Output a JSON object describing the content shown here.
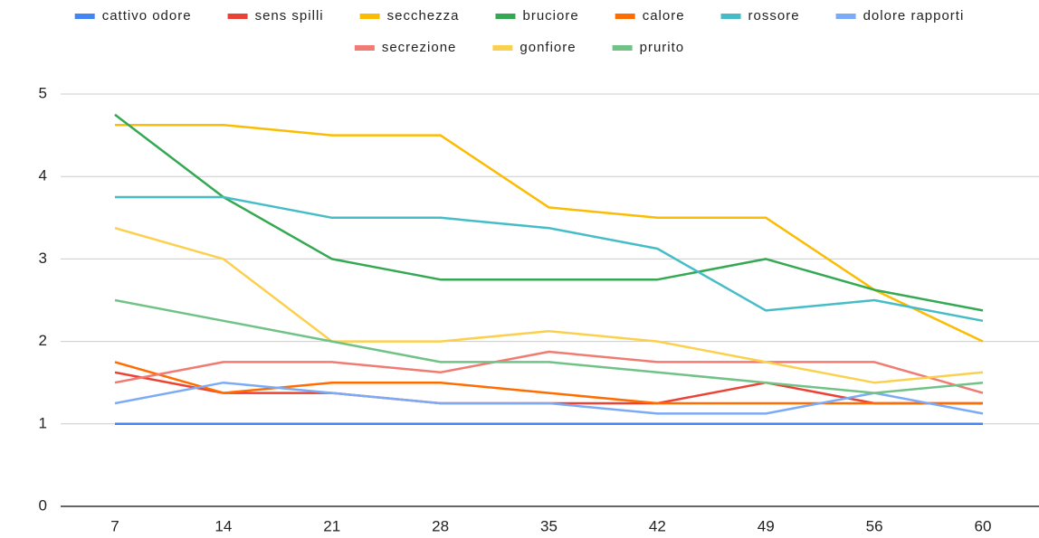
{
  "chart_data": {
    "type": "line",
    "categories": [
      "7",
      "14",
      "21",
      "28",
      "35",
      "42",
      "49",
      "56",
      "60"
    ],
    "series": [
      {
        "name": "cattivo odore",
        "color": "#4285f4",
        "values": [
          1,
          1,
          1,
          1,
          1,
          1,
          1,
          1,
          1
        ]
      },
      {
        "name": "sens spilli",
        "color": "#ea4335",
        "values": [
          1.625,
          1.375,
          1.375,
          1.25,
          1.25,
          1.25,
          1.5,
          1.25,
          1.25
        ]
      },
      {
        "name": "secchezza",
        "color": "#fbbc04",
        "values": [
          4.625,
          4.625,
          4.5,
          4.5,
          3.625,
          3.5,
          3.5,
          2.625,
          2
        ]
      },
      {
        "name": "bruciore",
        "color": "#34a853",
        "values": [
          4.75,
          3.75,
          3,
          2.75,
          2.75,
          2.75,
          3,
          2.625,
          2.375
        ]
      },
      {
        "name": "calore",
        "color": "#ff6d01",
        "values": [
          1.75,
          1.375,
          1.5,
          1.5,
          1.375,
          1.25,
          1.25,
          1.25,
          1.25
        ]
      },
      {
        "name": "rossore",
        "color": "#46bdc6",
        "values": [
          3.75,
          3.75,
          3.5,
          3.5,
          3.375,
          3.125,
          2.375,
          2.5,
          2.25
        ]
      },
      {
        "name": "dolore rapporti",
        "color": "#7baaf7",
        "values": [
          1.25,
          1.5,
          1.375,
          1.25,
          1.25,
          1.125,
          1.125,
          1.375,
          1.125
        ]
      },
      {
        "name": "secrezione",
        "color": "#f07b72",
        "values": [
          1.5,
          1.75,
          1.75,
          1.625,
          1.875,
          1.75,
          1.75,
          1.75,
          1.375
        ]
      },
      {
        "name": "gonfiore",
        "color": "#fcd04f",
        "values": [
          3.375,
          3,
          2,
          2,
          2.125,
          2,
          1.75,
          1.5,
          1.625
        ]
      },
      {
        "name": "prurito",
        "color": "#71c287",
        "values": [
          2.5,
          2.25,
          2,
          1.75,
          1.75,
          1.625,
          1.5,
          1.375,
          1.5
        ]
      }
    ],
    "ylim": [
      0,
      5
    ],
    "yticks": [
      0,
      1,
      2,
      3,
      4,
      5
    ],
    "grid": true,
    "legend": "top"
  }
}
